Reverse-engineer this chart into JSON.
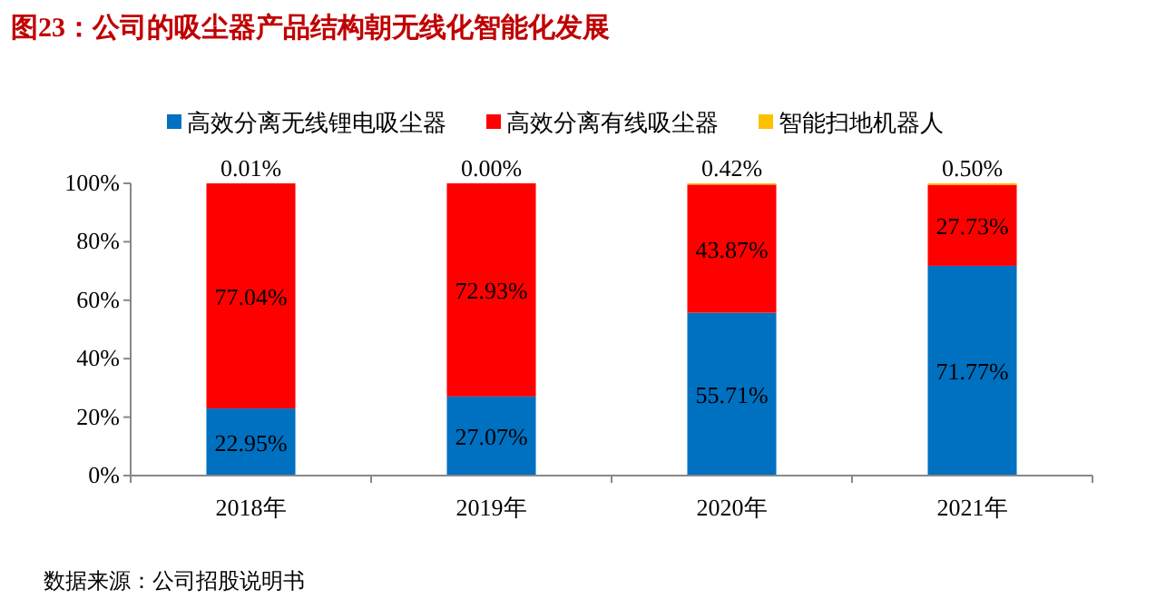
{
  "chart_data": {
    "type": "bar",
    "stacked": true,
    "title": "图23：公司的吸尘器产品结构朝无线化智能化发展",
    "categories": [
      "2018年",
      "2019年",
      "2020年",
      "2021年"
    ],
    "series": [
      {
        "name": "高效分离无线锂电吸尘器",
        "color": "#0070c0",
        "values": [
          22.95,
          27.07,
          55.71,
          71.77
        ],
        "value_labels": [
          "22.95%",
          "27.07%",
          "55.71%",
          "71.77%"
        ]
      },
      {
        "name": "高效分离有线吸尘器",
        "color": "#ff0000",
        "values": [
          77.04,
          72.93,
          43.87,
          27.73
        ],
        "value_labels": [
          "77.04%",
          "72.93%",
          "43.87%",
          "27.73%"
        ]
      },
      {
        "name": "智能扫地机器人",
        "color": "#ffc000",
        "values": [
          0.01,
          0.0,
          0.42,
          0.5
        ],
        "value_labels": [
          "0.01%",
          "0.00%",
          "0.42%",
          "0.50%"
        ]
      }
    ],
    "ylim": [
      0,
      100
    ],
    "yticks": [
      {
        "value": 0,
        "label": "0%"
      },
      {
        "value": 20,
        "label": "20%"
      },
      {
        "value": 40,
        "label": "40%"
      },
      {
        "value": 60,
        "label": "60%"
      },
      {
        "value": 80,
        "label": "80%"
      },
      {
        "value": 100,
        "label": "100%"
      }
    ],
    "legend": "top",
    "grid": false,
    "annotations": [
      "数据来源：公司招股说明书"
    ]
  }
}
